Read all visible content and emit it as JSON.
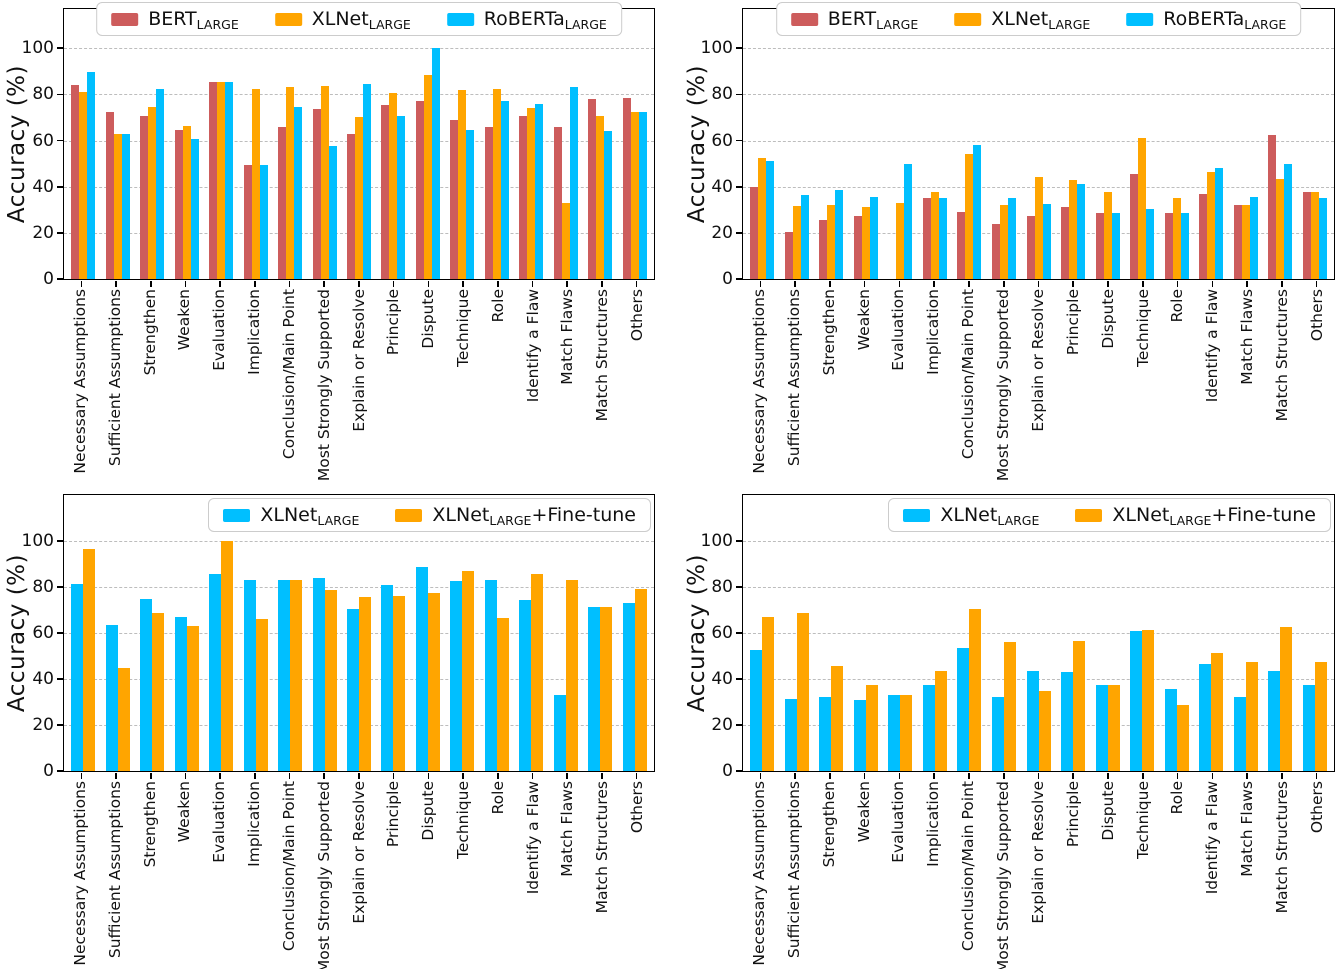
{
  "figure": {
    "background": "#ffffff"
  },
  "colors": {
    "bert": "#CD5C5C",
    "xlnet": "#FFA500",
    "roberta": "#00BFFF",
    "gridline": "#bdbdbd",
    "frame": "#000000"
  },
  "chart_data": [
    {
      "id": "top-left",
      "type": "bar",
      "title": "",
      "xlabel": "",
      "ylabel": "Accuracy (%)",
      "yticks": [
        0,
        20,
        40,
        60,
        80,
        100
      ],
      "ylim": [
        0,
        117
      ],
      "grid": true,
      "legend_position": "upper-center",
      "categories": [
        "Necessary Assumptions",
        "Sufficient Assumptions",
        "Strengthen",
        "Weaken",
        "Evaluation",
        "Implication",
        "Conclusion/Main Point",
        "Most Strongly Supported",
        "Explain or Resolve",
        "Principle",
        "Dispute",
        "Technique",
        "Role",
        "Identify a Flaw",
        "Match Flaws",
        "Match Structures",
        "Others"
      ],
      "series": [
        {
          "name": "BERT_LARGE",
          "label_main": "BERT",
          "label_sub": "LARGE",
          "label_suffix": "",
          "color": "#CD5C5C",
          "values": [
            84,
            72.5,
            70.5,
            64.5,
            85.5,
            49.5,
            66,
            73.5,
            63,
            75.5,
            77,
            69,
            66,
            70.5,
            66,
            78,
            78.5
          ]
        },
        {
          "name": "XLNet_LARGE",
          "label_main": "XLNet",
          "label_sub": "LARGE",
          "label_suffix": "",
          "color": "#FFA500",
          "values": [
            81,
            63,
            74.5,
            66.5,
            85.5,
            82.5,
            83,
            83.5,
            70,
            80.5,
            88.5,
            82,
            82.5,
            74,
            33,
            70.5,
            72.5
          ]
        },
        {
          "name": "RoBERTa_LARGE",
          "label_main": "RoBERTa",
          "label_sub": "LARGE",
          "label_suffix": "",
          "color": "#00BFFF",
          "values": [
            89.5,
            63,
            82.5,
            60.5,
            85.5,
            49.5,
            74.5,
            57.5,
            84.5,
            70.5,
            100,
            64.5,
            77,
            76,
            83,
            64,
            72.5
          ]
        }
      ]
    },
    {
      "id": "top-right",
      "type": "bar",
      "title": "",
      "xlabel": "",
      "ylabel": "Accuracy (%)",
      "yticks": [
        0,
        20,
        40,
        60,
        80,
        100
      ],
      "ylim": [
        0,
        117
      ],
      "grid": true,
      "legend_position": "upper-center",
      "categories": [
        "Necessary Assumptions",
        "Sufficient Assumptions",
        "Strengthen",
        "Weaken",
        "Evaluation",
        "Implication",
        "Conclusion/Main Point",
        "Most Strongly Supported",
        "Explain or Resolve",
        "Principle",
        "Dispute",
        "Technique",
        "Role",
        "Identify a Flaw",
        "Match Flaws",
        "Match Structures",
        "Others"
      ],
      "series": [
        {
          "name": "BERT_LARGE",
          "label_main": "BERT",
          "label_sub": "LARGE",
          "label_suffix": "",
          "color": "#CD5C5C",
          "values": [
            40,
            20.5,
            25.5,
            27.5,
            0,
            35,
            29,
            24,
            27.5,
            31,
            28.5,
            45.5,
            28.5,
            37,
            32,
            62.5,
            37.5
          ]
        },
        {
          "name": "XLNet_LARGE",
          "label_main": "XLNet",
          "label_sub": "LARGE",
          "label_suffix": "",
          "color": "#FFA500",
          "values": [
            52.5,
            31.5,
            32,
            31,
            33,
            37.5,
            54,
            32,
            44,
            43,
            37.5,
            61,
            35,
            46.5,
            32,
            43.5,
            37.5
          ]
        },
        {
          "name": "RoBERTa_LARGE",
          "label_main": "RoBERTa",
          "label_sub": "LARGE",
          "label_suffix": "",
          "color": "#00BFFF",
          "values": [
            51,
            36.5,
            38.5,
            35.5,
            50,
            35,
            58,
            35,
            32.5,
            41,
            28.5,
            30.5,
            28.5,
            48,
            35.5,
            50,
            35
          ]
        }
      ]
    },
    {
      "id": "bottom-left",
      "type": "bar",
      "title": "",
      "xlabel": "",
      "ylabel": "Accuracy (%)",
      "yticks": [
        0,
        20,
        40,
        60,
        80,
        100
      ],
      "ylim": [
        0,
        120
      ],
      "grid": true,
      "legend_position": "upper-right",
      "categories": [
        "Necessary Assumptions",
        "Sufficient Assumptions",
        "Strengthen",
        "Weaken",
        "Evaluation",
        "Implication",
        "Conclusion/Main Point",
        "Most Strongly Supported",
        "Explain or Resolve",
        "Principle",
        "Dispute",
        "Technique",
        "Role",
        "Identify a Flaw",
        "Match Flaws",
        "Match Structures",
        "Others"
      ],
      "series": [
        {
          "name": "XLNet_LARGE",
          "label_main": "XLNet",
          "label_sub": "LARGE",
          "label_suffix": "",
          "color": "#00BFFF",
          "values": [
            81.5,
            63.5,
            75,
            67,
            85.5,
            83,
            83,
            84,
            70.5,
            81,
            88.5,
            82.5,
            83,
            74.5,
            33,
            71.5,
            73
          ]
        },
        {
          "name": "XLNet_LARGE+Fine-tune",
          "label_main": "XLNet",
          "label_sub": "LARGE",
          "label_suffix": "+Fine-tune",
          "color": "#FFA500",
          "values": [
            96.5,
            45,
            68.5,
            63,
            100,
            66,
            83,
            78.5,
            75.5,
            76,
            77.5,
            87,
            66.5,
            85.5,
            83,
            71.5,
            79
          ]
        }
      ]
    },
    {
      "id": "bottom-right",
      "type": "bar",
      "title": "",
      "xlabel": "",
      "ylabel": "Accuracy (%)",
      "yticks": [
        0,
        20,
        40,
        60,
        80,
        100
      ],
      "ylim": [
        0,
        120
      ],
      "grid": true,
      "legend_position": "upper-right",
      "categories": [
        "Necessary Assumptions",
        "Sufficient Assumptions",
        "Strengthen",
        "Weaken",
        "Evaluation",
        "Implication",
        "Conclusion/Main Point",
        "Most Strongly Supported",
        "Explain or Resolve",
        "Principle",
        "Dispute",
        "Technique",
        "Role",
        "Identify a Flaw",
        "Match Flaws",
        "Match Structures",
        "Others"
      ],
      "series": [
        {
          "name": "XLNet_LARGE",
          "label_main": "XLNet",
          "label_sub": "LARGE",
          "label_suffix": "",
          "color": "#00BFFF",
          "values": [
            52.5,
            31.5,
            32,
            31,
            33,
            37.5,
            53.5,
            32,
            43.5,
            43,
            37.5,
            61,
            35.5,
            46.5,
            32,
            43.5,
            37.5
          ]
        },
        {
          "name": "XLNet_LARGE+Fine-tune",
          "label_main": "XLNet",
          "label_sub": "LARGE",
          "label_suffix": "+Fine-tune",
          "color": "#FFA500",
          "values": [
            67,
            68.5,
            45.5,
            37.5,
            33,
            43.5,
            70.5,
            56,
            35,
            56.5,
            37.5,
            61.5,
            28.5,
            51.5,
            47.5,
            62.5,
            47.5
          ]
        }
      ]
    }
  ]
}
